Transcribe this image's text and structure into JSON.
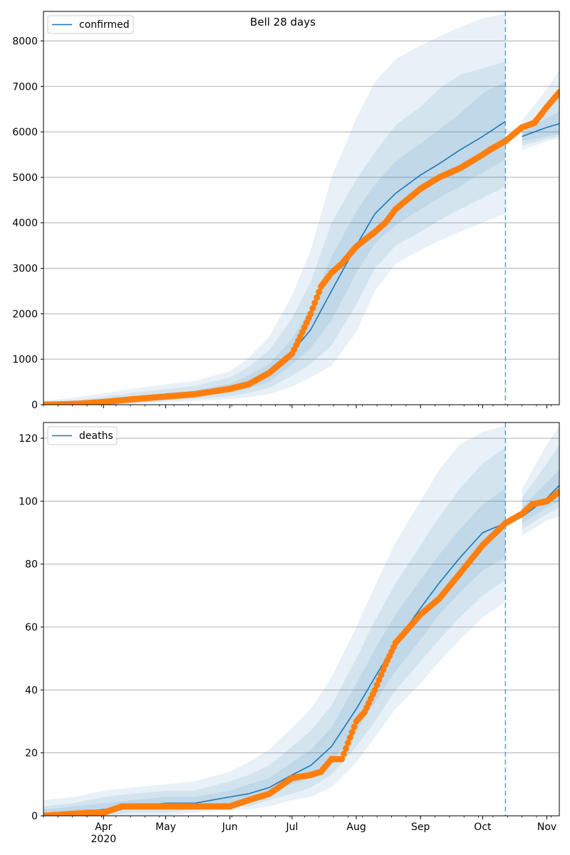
{
  "title": "Bell 28 days",
  "chart_data": [
    {
      "type": "line",
      "title": "Bell 28 days",
      "xlabel": "",
      "ylabel": "",
      "ylim": [
        0,
        8650
      ],
      "yticks": [
        0,
        1000,
        2000,
        3000,
        4000,
        5000,
        6000,
        7000,
        8000
      ],
      "xlim": [
        "2020-03-03",
        "2020-11-07"
      ],
      "x_tick_labels": [
        "",
        "",
        "",
        "",
        "",
        "",
        "",
        "",
        ""
      ],
      "x_tick_year": "",
      "grid": "horizontal",
      "legend": {
        "position": "top-left",
        "entries": [
          "confirmed"
        ]
      },
      "forecast_start": "2020-10-12",
      "series": [
        {
          "name": "confirmed",
          "x": [
            "2020-03-03",
            "2020-03-18",
            "2020-04-01",
            "2020-04-15",
            "2020-05-01",
            "2020-05-15",
            "2020-06-01",
            "2020-06-10",
            "2020-06-20",
            "2020-07-01",
            "2020-07-10",
            "2020-07-20",
            "2020-08-01",
            "2020-08-10",
            "2020-08-20",
            "2020-09-01",
            "2020-09-10",
            "2020-09-20",
            "2020-10-01",
            "2020-10-12",
            "2020-10-20",
            "2020-11-01",
            "2020-11-07"
          ],
          "values": [
            0,
            20,
            60,
            120,
            190,
            240,
            350,
            480,
            700,
            1150,
            1650,
            2500,
            3500,
            4200,
            4650,
            5050,
            5300,
            5600,
            5900,
            6230,
            5900,
            6100,
            6180
          ],
          "bands": [
            {
              "lower": [
                0,
                5,
                25,
                70,
                130,
                175,
                260,
                350,
                510,
                880,
                1250,
                1850,
                2900,
                3550,
                3950,
                4300,
                4550,
                4800,
                5100,
                5400,
                5800,
                5900,
                5950
              ],
              "upper": [
                20,
                45,
                105,
                180,
                255,
                315,
                460,
                640,
                900,
                1450,
                2150,
                3250,
                4250,
                4850,
                5350,
                5750,
                6050,
                6400,
                6850,
                7100,
                6000,
                6300,
                6450
              ]
            },
            {
              "lower": [
                0,
                0,
                10,
                40,
                90,
                130,
                190,
                260,
                370,
                640,
                900,
                1300,
                2200,
                3000,
                3500,
                3800,
                4050,
                4300,
                4550,
                4800,
                5700,
                5850,
                5900
              ],
              "upper": [
                50,
                95,
                170,
                260,
                345,
                410,
                600,
                830,
                1200,
                1900,
                2700,
                4000,
                4950,
                5550,
                6150,
                6550,
                6950,
                7250,
                7400,
                7550,
                6100,
                6550,
                6850
              ]
            },
            {
              "lower": [
                0,
                0,
                0,
                20,
                50,
                80,
                120,
                160,
                230,
                400,
                600,
                850,
                1600,
                2500,
                3100,
                3400,
                3600,
                3800,
                4000,
                4200,
                5600,
                5800,
                5850
              ],
              "upper": [
                90,
                150,
                250,
                350,
                450,
                520,
                740,
                1030,
                1500,
                2400,
                3400,
                5000,
                6300,
                7100,
                7600,
                7900,
                8100,
                8300,
                8500,
                8600,
                6250,
                6950,
                7350
              ]
            }
          ]
        }
      ],
      "observed": {
        "x": [
          "2020-03-03",
          "2020-03-20",
          "2020-04-01",
          "2020-04-15",
          "2020-05-01",
          "2020-05-15",
          "2020-06-01",
          "2020-06-10",
          "2020-06-20",
          "2020-07-01",
          "2020-07-05",
          "2020-07-10",
          "2020-07-15",
          "2020-07-20",
          "2020-07-25",
          "2020-08-01",
          "2020-08-10",
          "2020-08-15",
          "2020-08-20",
          "2020-09-01",
          "2020-09-10",
          "2020-09-20",
          "2020-10-01",
          "2020-10-05",
          "2020-10-12",
          "2020-10-20",
          "2020-10-26",
          "2020-11-01",
          "2020-11-07"
        ],
        "values": [
          0,
          20,
          60,
          120,
          180,
          230,
          350,
          450,
          700,
          1120,
          1500,
          2000,
          2600,
          2900,
          3100,
          3480,
          3800,
          4000,
          4300,
          4750,
          5000,
          5200,
          5500,
          5620,
          5800,
          6100,
          6200,
          6550,
          6870
        ]
      }
    },
    {
      "type": "line",
      "title": "",
      "xlabel": "",
      "ylabel": "",
      "ylim": [
        0,
        125
      ],
      "yticks": [
        0,
        20,
        40,
        60,
        80,
        100,
        120
      ],
      "xlim": [
        "2020-03-03",
        "2020-11-07"
      ],
      "x_tick_labels": [
        "Apr",
        "May",
        "Jun",
        "Jul",
        "Aug",
        "Sep",
        "Oct",
        "Nov"
      ],
      "x_tick_year": "2020",
      "grid": "horizontal",
      "legend": {
        "position": "top-left",
        "entries": [
          "deaths"
        ]
      },
      "forecast_start": "2020-10-12",
      "series": [
        {
          "name": "deaths",
          "x": [
            "2020-03-03",
            "2020-03-18",
            "2020-04-01",
            "2020-04-15",
            "2020-05-01",
            "2020-05-15",
            "2020-06-01",
            "2020-06-10",
            "2020-06-20",
            "2020-07-01",
            "2020-07-10",
            "2020-07-20",
            "2020-08-01",
            "2020-08-10",
            "2020-08-20",
            "2020-09-01",
            "2020-09-10",
            "2020-09-20",
            "2020-10-01",
            "2020-10-12",
            "2020-10-20",
            "2020-11-01",
            "2020-11-07"
          ],
          "values": [
            0,
            1,
            2,
            3,
            4,
            4,
            6,
            7,
            9,
            13,
            16,
            22,
            34,
            44,
            55,
            66,
            74,
            82,
            90,
            93,
            95,
            101,
            105
          ],
          "bands": [
            {
              "lower": [
                0,
                0,
                1,
                2,
                2,
                3,
                4,
                5,
                7,
                10,
                12,
                17,
                27,
                36,
                46,
                56,
                64,
                71,
                78,
                82,
                93,
                98,
                100
              ],
              "upper": [
                2,
                3,
                4,
                5,
                6,
                6,
                8,
                10,
                12,
                17,
                21,
                28,
                42,
                53,
                64,
                75,
                83,
                91,
                99,
                104,
                98,
                106,
                110
              ]
            },
            {
              "lower": [
                0,
                0,
                0,
                1,
                1,
                2,
                3,
                3,
                5,
                7,
                9,
                13,
                22,
                30,
                40,
                49,
                56,
                63,
                70,
                75,
                91,
                96,
                98
              ],
              "upper": [
                3,
                4,
                6,
                7,
                8,
                8,
                11,
                13,
                16,
                22,
                27,
                35,
                50,
                62,
                74,
                86,
                95,
                104,
                112,
                117,
                101,
                112,
                118
              ]
            },
            {
              "lower": [
                0,
                0,
                0,
                0,
                0,
                1,
                2,
                2,
                3,
                5,
                6,
                9,
                17,
                25,
                34,
                42,
                49,
                56,
                63,
                68,
                89,
                94,
                95
              ],
              "upper": [
                5,
                6,
                8,
                9,
                10,
                11,
                14,
                17,
                21,
                28,
                34,
                44,
                60,
                73,
                87,
                100,
                110,
                118,
                122,
                124,
                104,
                118,
                124
              ]
            }
          ]
        }
      ],
      "observed": {
        "x": [
          "2020-03-03",
          "2020-03-25",
          "2020-04-01",
          "2020-04-10",
          "2020-05-01",
          "2020-05-15",
          "2020-06-01",
          "2020-06-10",
          "2020-06-20",
          "2020-07-01",
          "2020-07-10",
          "2020-07-15",
          "2020-07-20",
          "2020-07-25",
          "2020-08-01",
          "2020-08-05",
          "2020-08-10",
          "2020-08-15",
          "2020-08-20",
          "2020-09-01",
          "2020-09-10",
          "2020-09-20",
          "2020-10-01",
          "2020-10-12",
          "2020-10-20",
          "2020-10-25",
          "2020-11-01",
          "2020-11-07"
        ],
        "values": [
          0,
          1,
          1,
          3,
          3,
          3,
          3,
          5,
          7,
          12,
          13,
          14,
          18,
          18,
          30,
          33,
          40,
          48,
          55,
          64,
          69,
          77,
          86,
          93,
          96,
          99,
          100,
          103
        ]
      }
    }
  ],
  "colors": {
    "line": "#1f77b4",
    "band": "#1f77b4",
    "observed": "#ff7f0e",
    "forecast_line": "#5f9fd6",
    "grid": "#b0b0b0"
  }
}
